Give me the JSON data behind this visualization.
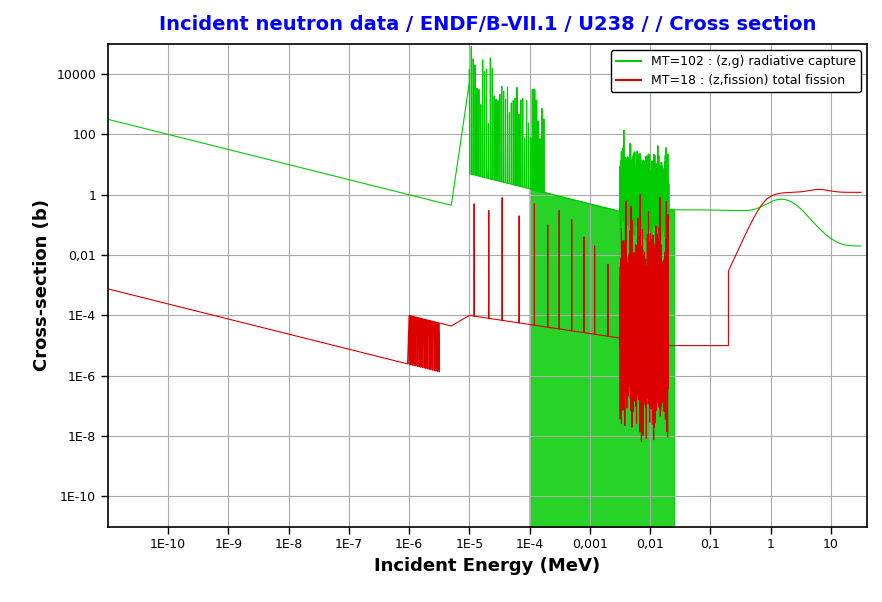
{
  "title": "Incident neutron data / ENDF/B-VII.1 / U238 / / Cross section",
  "title_color": "blue",
  "title_fontsize": 14,
  "xlabel": "Incident Energy (MeV)",
  "ylabel": "Cross-section (b)",
  "xlabel_fontsize": 13,
  "ylabel_fontsize": 13,
  "xlim_log": [
    -11,
    2
  ],
  "ylim_log": [
    -11,
    5
  ],
  "background_color": "#ffffff",
  "grid_color": "#aaaaaa",
  "legend_green": "MT=102 : (z,g) radiative capture",
  "legend_red": "MT=18 : (z,fission) total fission",
  "green_color": "#00cc00",
  "red_color": "#dd0000",
  "yticks": [
    1e-10,
    1e-08,
    1e-06,
    0.0001,
    0.01,
    1,
    100,
    10000
  ],
  "ytick_labels": [
    "1E-10",
    "1E-8",
    "1E-6",
    "1E-4",
    "0,01",
    "1",
    "100",
    "10000"
  ],
  "xticks": [
    1e-10,
    1e-09,
    1e-08,
    1e-07,
    1e-06,
    1e-05,
    0.0001,
    0.001,
    0.01,
    0.1,
    1,
    10
  ],
  "xtick_labels": [
    "1E-10",
    "1E-9",
    "1E-8",
    "1E-7",
    "1E-6",
    "1E-5",
    "1E-4",
    "0,001",
    "0,01",
    "0,1",
    "1",
    "10"
  ]
}
